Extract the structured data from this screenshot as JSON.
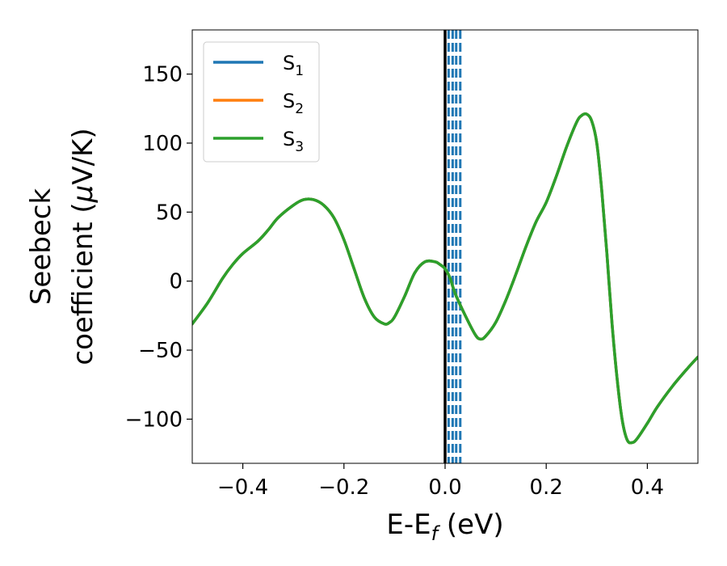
{
  "chart_data": {
    "type": "line",
    "title": "",
    "xlabel": {
      "main": "E-E",
      "sub": "f",
      "unit": " (eV)"
    },
    "ylabel": {
      "line1": "Seebeck",
      "line2_prefix": "coefficient  (",
      "mu": "μ",
      "line2_suffix": "V/K)"
    },
    "xlim": [
      -0.5,
      0.5
    ],
    "ylim": [
      -132,
      182
    ],
    "xticks": [
      -0.4,
      -0.2,
      0.0,
      0.2,
      0.4
    ],
    "xtick_labels": [
      "−0.4",
      "−0.2",
      "0.0",
      "0.2",
      "0.4"
    ],
    "yticks": [
      -100,
      -50,
      0,
      50,
      100,
      150
    ],
    "ytick_labels": [
      "−100",
      "−50",
      "0",
      "50",
      "100",
      "150"
    ],
    "grid": false,
    "legend_position": "top-left",
    "series": [
      {
        "name": "S",
        "sub": "1",
        "color": "#1f77b4"
      },
      {
        "name": "S",
        "sub": "2",
        "color": "#ff7f0e"
      },
      {
        "name": "S",
        "sub": "3",
        "color": "#2ca02c"
      }
    ],
    "x": [
      -0.5,
      -0.47,
      -0.44,
      -0.42,
      -0.4,
      -0.37,
      -0.35,
      -0.33,
      -0.3,
      -0.28,
      -0.26,
      -0.24,
      -0.22,
      -0.2,
      -0.18,
      -0.16,
      -0.14,
      -0.12,
      -0.11,
      -0.1,
      -0.08,
      -0.06,
      -0.04,
      -0.02,
      -0.01,
      0.0,
      0.01,
      0.02,
      0.04,
      0.06,
      0.07,
      0.08,
      0.1,
      0.12,
      0.14,
      0.16,
      0.18,
      0.2,
      0.22,
      0.24,
      0.26,
      0.27,
      0.28,
      0.29,
      0.3,
      0.31,
      0.32,
      0.33,
      0.34,
      0.35,
      0.36,
      0.37,
      0.38,
      0.4,
      0.42,
      0.45,
      0.48,
      0.5
    ],
    "values": [
      -31,
      -16,
      2,
      12,
      20,
      29,
      37,
      46,
      55,
      59,
      59,
      55,
      46,
      30,
      9,
      -12,
      -26,
      -31,
      -30,
      -26,
      -11,
      6,
      14,
      14,
      12,
      9,
      2,
      -9,
      -25,
      -39,
      -42,
      -40,
      -30,
      -14,
      5,
      25,
      43,
      57,
      76,
      97,
      115,
      120,
      121,
      116,
      100,
      65,
      20,
      -30,
      -70,
      -100,
      -115,
      -117,
      -114,
      -103,
      -91,
      -76,
      -63,
      -55
    ],
    "vlines": [
      {
        "x": 0.0,
        "color": "#000000",
        "style": "solid"
      },
      {
        "x": 0.007,
        "color": "#1f77b4",
        "style": "dashed"
      },
      {
        "x": 0.015,
        "color": "#1f77b4",
        "style": "dashed"
      },
      {
        "x": 0.022,
        "color": "#1f77b4",
        "style": "dashed"
      },
      {
        "x": 0.03,
        "color": "#1f77b4",
        "style": "dashed"
      }
    ]
  }
}
